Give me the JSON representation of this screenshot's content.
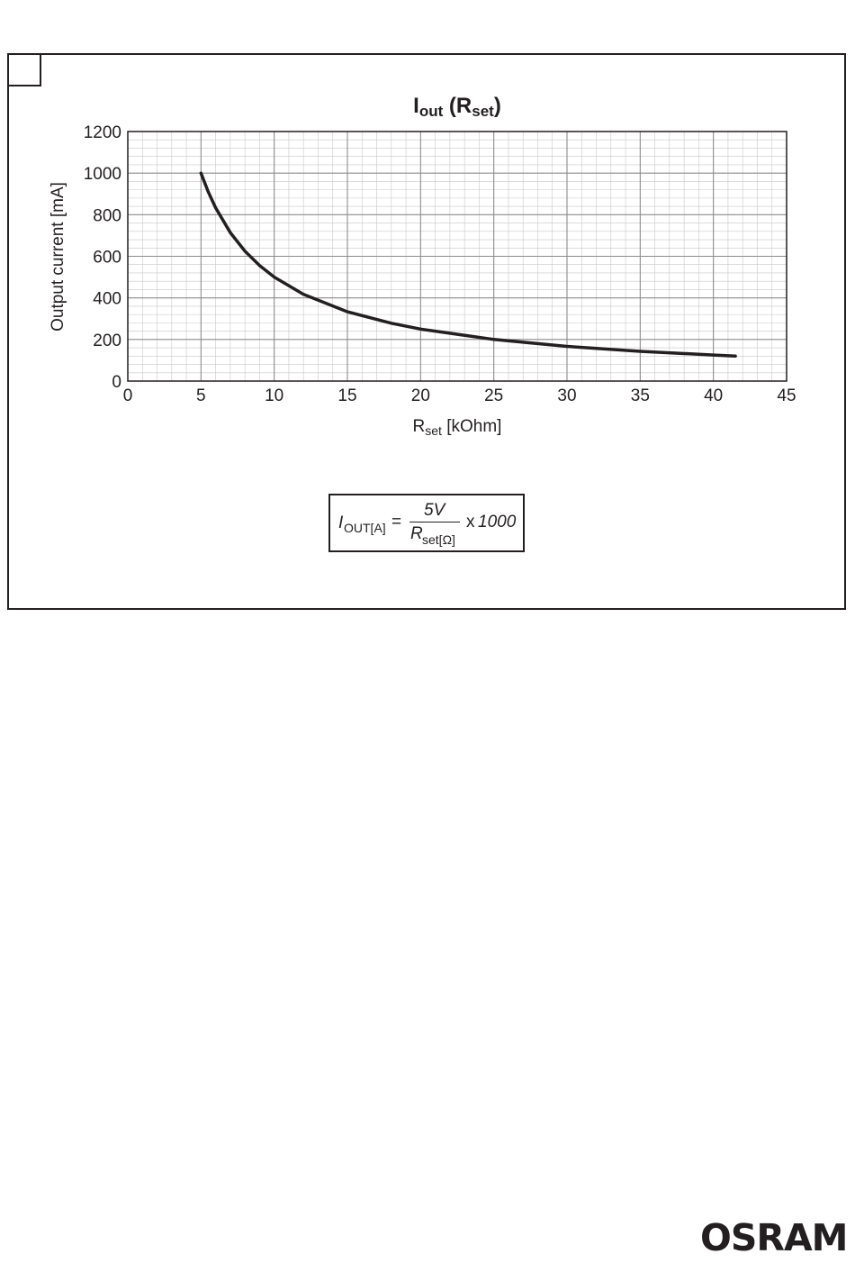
{
  "chart_data": {
    "type": "line",
    "title": {
      "main": "I",
      "sub": "out",
      "paren_main": "R",
      "paren_sub": "set"
    },
    "xlabel": {
      "main": "R",
      "sub": "set",
      "unit": " [kOhm]"
    },
    "ylabel": "Output current [mA]",
    "xlim": [
      0,
      45
    ],
    "ylim": [
      0,
      1200
    ],
    "xticks": [
      "0",
      "5",
      "10",
      "15",
      "20",
      "25",
      "30",
      "35",
      "40",
      "45"
    ],
    "yticks": [
      "0",
      "200",
      "400",
      "600",
      "800",
      "1000",
      "1200"
    ],
    "grid": true,
    "series": [
      {
        "color": "#231f20",
        "x": [
          5,
          5.5,
          6,
          7,
          8,
          9,
          10,
          12,
          15,
          18,
          20,
          25,
          30,
          35,
          40,
          41.5
        ],
        "y": [
          1000,
          909,
          833,
          714,
          625,
          556,
          500,
          417,
          333,
          278,
          250,
          200,
          167,
          143,
          125,
          120
        ]
      }
    ]
  },
  "formula": {
    "lhs_var": "I",
    "lhs_sub": "OUT[A]",
    "equals": "=",
    "numerator": "5V",
    "denom_var": "R",
    "denom_sub": "set[Ω]",
    "multiplier": "x",
    "factor": "1000"
  },
  "logo": "OSRAM",
  "colors": {
    "ink": "#231f20",
    "grid_minor": "#c8c8c8",
    "grid_major": "#8c8c8c"
  }
}
